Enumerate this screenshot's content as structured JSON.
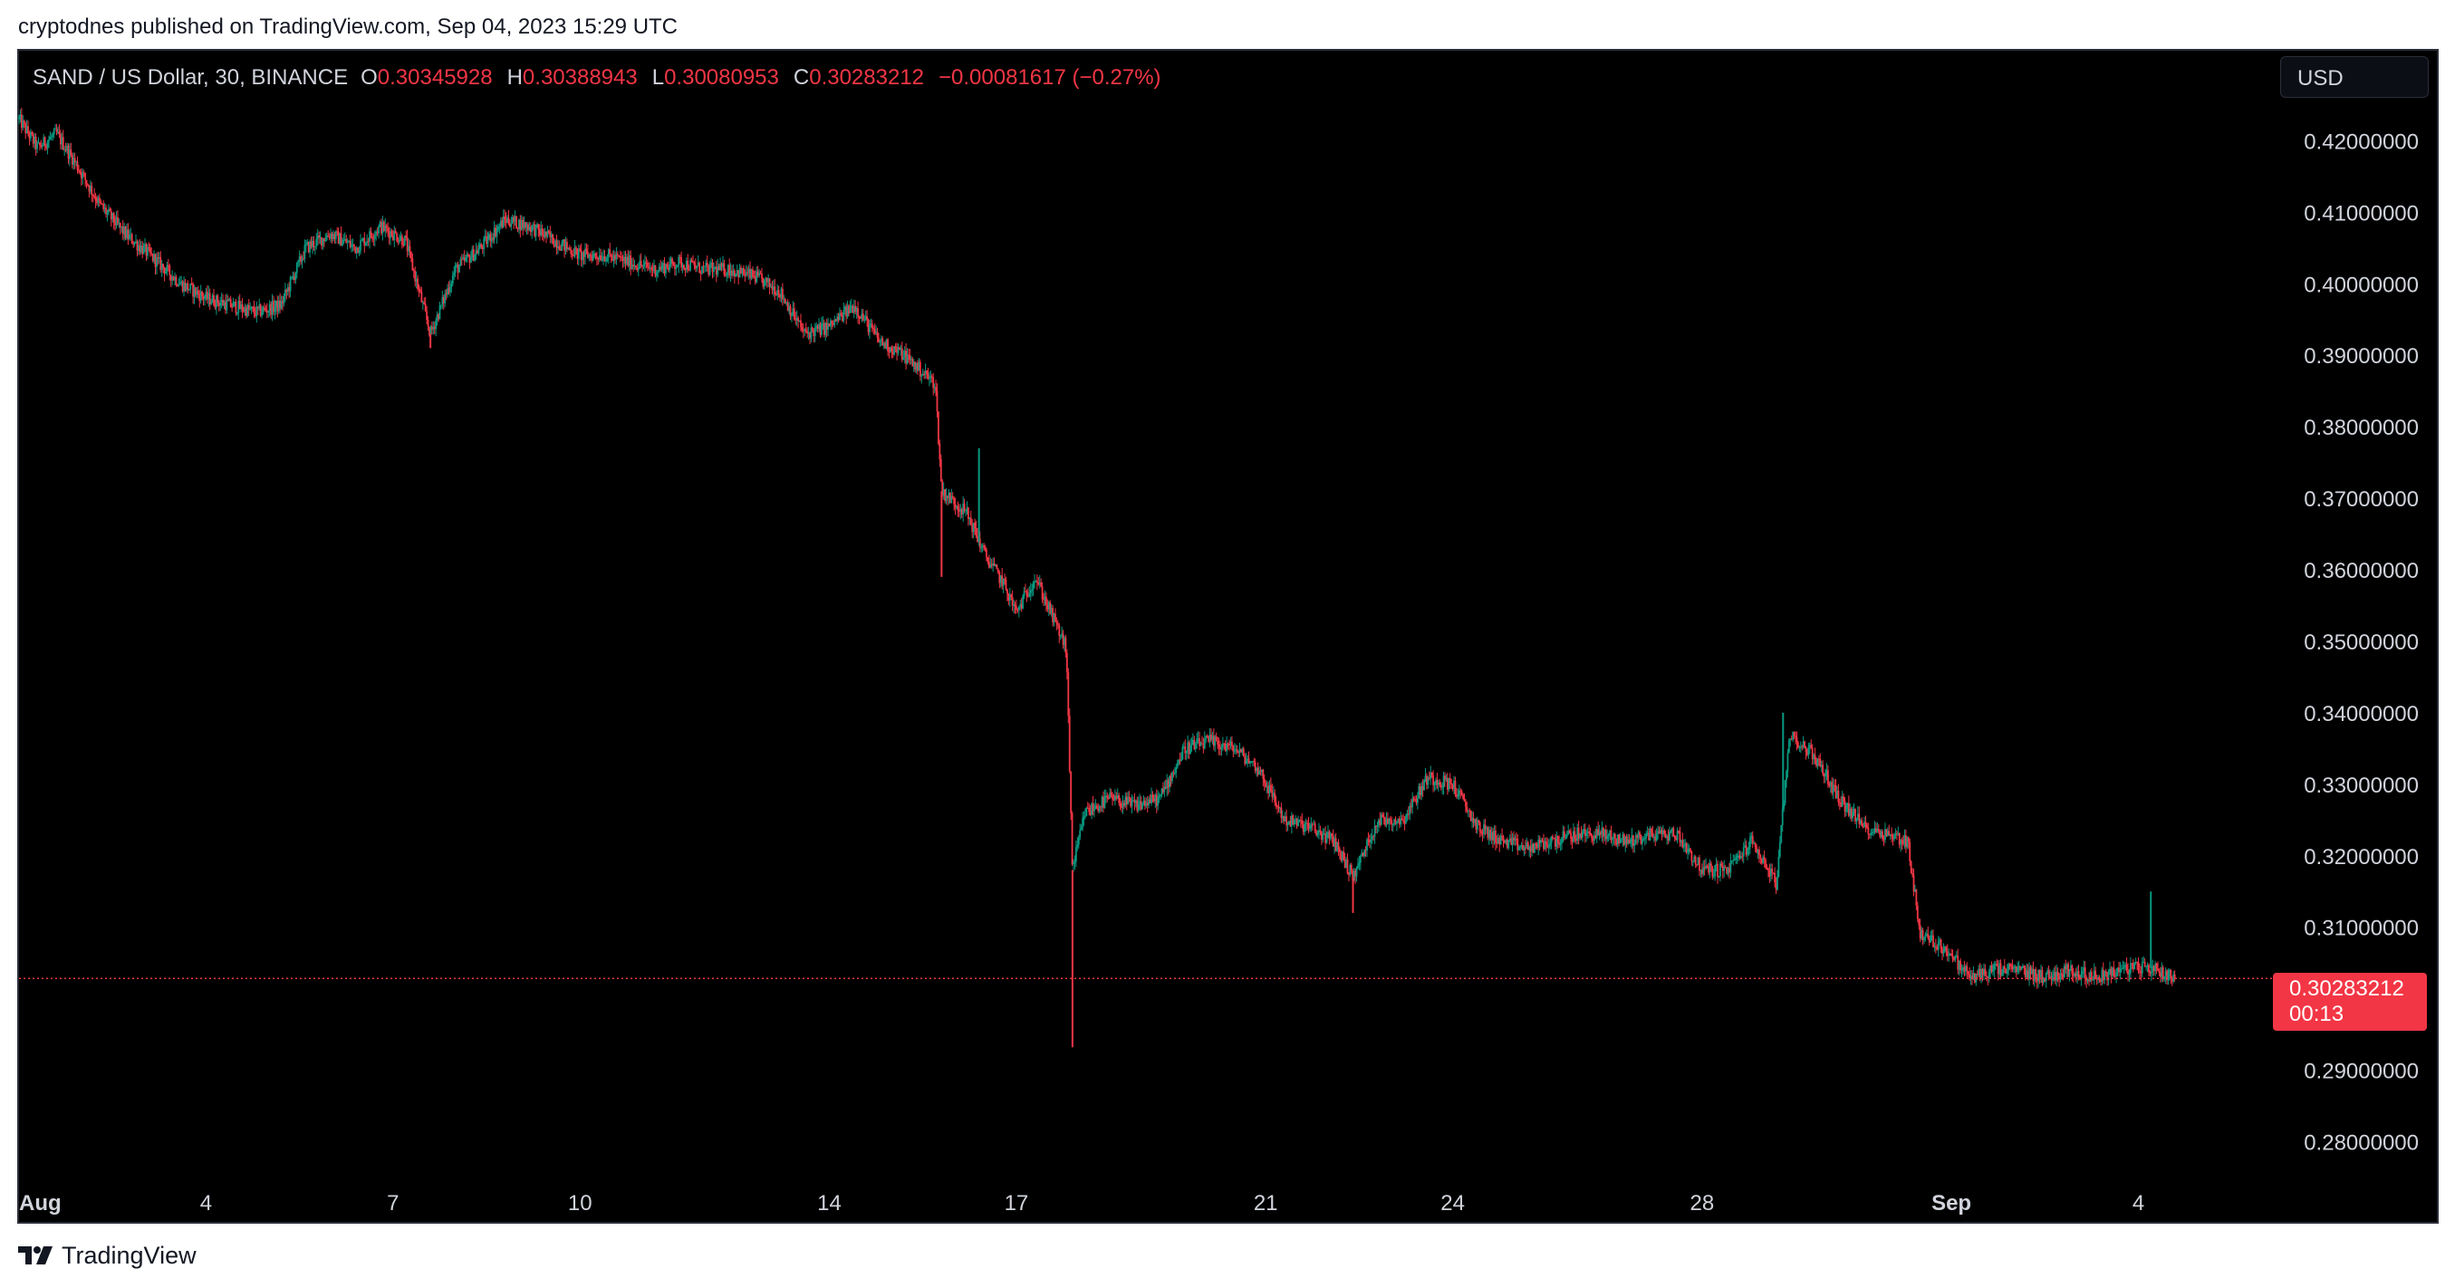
{
  "publish_caption": "cryptodnes published on TradingView.com, Sep 04, 2023 15:29 UTC",
  "legend": {
    "symbol": "SAND / US Dollar, 30, BINANCE",
    "open_label": "O",
    "open": "0.30345928",
    "high_label": "H",
    "high": "0.30388943",
    "low_label": "L",
    "low": "0.30080953",
    "close_label": "C",
    "close": "0.30283212",
    "change": "−0.00081617 (−0.27%)"
  },
  "currency_button": "USD",
  "last_price_badge": {
    "price": "0.30283212",
    "countdown": "00:13"
  },
  "brand": "TradingView",
  "colors": {
    "up": "#089981",
    "down": "#f23645",
    "background": "#000000",
    "text": "#d1d4dc",
    "badge": "#f23645"
  },
  "chart_data": {
    "type": "candlestick",
    "symbol": "SAND / US Dollar",
    "interval": "30",
    "exchange": "BINANCE",
    "ylim": [
      0.2755,
      0.4326
    ],
    "y_ticks": [
      "0.42000000",
      "0.41000000",
      "0.40000000",
      "0.39000000",
      "0.38000000",
      "0.37000000",
      "0.36000000",
      "0.35000000",
      "0.34000000",
      "0.33000000",
      "0.32000000",
      "0.31000000",
      "0.29000000",
      "0.28000000"
    ],
    "x_ticks": [
      {
        "label": "Aug",
        "day": 1
      },
      {
        "label": "4",
        "day": 4
      },
      {
        "label": "7",
        "day": 7
      },
      {
        "label": "10",
        "day": 10
      },
      {
        "label": "14",
        "day": 14
      },
      {
        "label": "17",
        "day": 17
      },
      {
        "label": "21",
        "day": 21
      },
      {
        "label": "24",
        "day": 24
      },
      {
        "label": "28",
        "day": 28
      },
      {
        "label": "Sep",
        "day": 32
      },
      {
        "label": "4",
        "day": 35
      }
    ],
    "x_range_days": [
      1,
      37.1
    ],
    "last_price": 0.30283212,
    "price_path": [
      {
        "day": 1.0,
        "price": 0.423
      },
      {
        "day": 1.3,
        "price": 0.419
      },
      {
        "day": 1.6,
        "price": 0.421
      },
      {
        "day": 1.9,
        "price": 0.417
      },
      {
        "day": 2.3,
        "price": 0.411
      },
      {
        "day": 2.7,
        "price": 0.407
      },
      {
        "day": 3.1,
        "price": 0.404
      },
      {
        "day": 3.6,
        "price": 0.4
      },
      {
        "day": 4.0,
        "price": 0.398
      },
      {
        "day": 4.4,
        "price": 0.397
      },
      {
        "day": 4.8,
        "price": 0.396
      },
      {
        "day": 5.2,
        "price": 0.397
      },
      {
        "day": 5.6,
        "price": 0.405
      },
      {
        "day": 6.0,
        "price": 0.407
      },
      {
        "day": 6.4,
        "price": 0.405
      },
      {
        "day": 6.8,
        "price": 0.408
      },
      {
        "day": 7.2,
        "price": 0.406
      },
      {
        "day": 7.6,
        "price": 0.393
      },
      {
        "day": 8.0,
        "price": 0.402
      },
      {
        "day": 8.4,
        "price": 0.405
      },
      {
        "day": 8.8,
        "price": 0.409
      },
      {
        "day": 9.2,
        "price": 0.408
      },
      {
        "day": 9.6,
        "price": 0.406
      },
      {
        "day": 10.0,
        "price": 0.404
      },
      {
        "day": 10.4,
        "price": 0.404
      },
      {
        "day": 10.8,
        "price": 0.403
      },
      {
        "day": 11.2,
        "price": 0.402
      },
      {
        "day": 11.6,
        "price": 0.403
      },
      {
        "day": 12.0,
        "price": 0.402
      },
      {
        "day": 12.4,
        "price": 0.402
      },
      {
        "day": 12.8,
        "price": 0.401
      },
      {
        "day": 13.2,
        "price": 0.399
      },
      {
        "day": 13.6,
        "price": 0.393
      },
      {
        "day": 14.0,
        "price": 0.394
      },
      {
        "day": 14.4,
        "price": 0.397
      },
      {
        "day": 14.8,
        "price": 0.392
      },
      {
        "day": 15.2,
        "price": 0.39
      },
      {
        "day": 15.7,
        "price": 0.386
      },
      {
        "day": 15.8,
        "price": 0.371
      },
      {
        "day": 16.2,
        "price": 0.368
      },
      {
        "day": 16.5,
        "price": 0.362
      },
      {
        "day": 16.8,
        "price": 0.358
      },
      {
        "day": 17.0,
        "price": 0.354
      },
      {
        "day": 17.3,
        "price": 0.359
      },
      {
        "day": 17.6,
        "price": 0.353
      },
      {
        "day": 17.8,
        "price": 0.349
      },
      {
        "day": 17.9,
        "price": 0.318
      },
      {
        "day": 18.1,
        "price": 0.326
      },
      {
        "day": 18.5,
        "price": 0.328
      },
      {
        "day": 18.9,
        "price": 0.327
      },
      {
        "day": 19.3,
        "price": 0.328
      },
      {
        "day": 19.7,
        "price": 0.335
      },
      {
        "day": 20.1,
        "price": 0.336
      },
      {
        "day": 20.5,
        "price": 0.335
      },
      {
        "day": 20.9,
        "price": 0.332
      },
      {
        "day": 21.3,
        "price": 0.325
      },
      {
        "day": 21.7,
        "price": 0.324
      },
      {
        "day": 22.1,
        "price": 0.322
      },
      {
        "day": 22.4,
        "price": 0.317
      },
      {
        "day": 22.8,
        "price": 0.325
      },
      {
        "day": 23.2,
        "price": 0.325
      },
      {
        "day": 23.6,
        "price": 0.331
      },
      {
        "day": 24.0,
        "price": 0.33
      },
      {
        "day": 24.4,
        "price": 0.324
      },
      {
        "day": 24.8,
        "price": 0.322
      },
      {
        "day": 25.2,
        "price": 0.321
      },
      {
        "day": 25.6,
        "price": 0.322
      },
      {
        "day": 26.0,
        "price": 0.323
      },
      {
        "day": 26.4,
        "price": 0.323
      },
      {
        "day": 26.8,
        "price": 0.322
      },
      {
        "day": 27.2,
        "price": 0.323
      },
      {
        "day": 27.6,
        "price": 0.323
      },
      {
        "day": 28.0,
        "price": 0.318
      },
      {
        "day": 28.4,
        "price": 0.318
      },
      {
        "day": 28.8,
        "price": 0.322
      },
      {
        "day": 29.2,
        "price": 0.316
      },
      {
        "day": 29.4,
        "price": 0.337
      },
      {
        "day": 29.8,
        "price": 0.334
      },
      {
        "day": 30.2,
        "price": 0.328
      },
      {
        "day": 30.6,
        "price": 0.324
      },
      {
        "day": 31.0,
        "price": 0.323
      },
      {
        "day": 31.3,
        "price": 0.322
      },
      {
        "day": 31.5,
        "price": 0.309
      },
      {
        "day": 31.9,
        "price": 0.307
      },
      {
        "day": 32.3,
        "price": 0.303
      },
      {
        "day": 32.7,
        "price": 0.304
      },
      {
        "day": 33.1,
        "price": 0.304
      },
      {
        "day": 33.5,
        "price": 0.303
      },
      {
        "day": 33.9,
        "price": 0.304
      },
      {
        "day": 34.3,
        "price": 0.303
      },
      {
        "day": 34.7,
        "price": 0.304
      },
      {
        "day": 35.1,
        "price": 0.3045
      },
      {
        "day": 35.5,
        "price": 0.3034
      },
      {
        "day": 35.6,
        "price": 0.3028
      }
    ],
    "spikes": [
      {
        "day": 7.6,
        "low": 0.391
      },
      {
        "day": 15.8,
        "low": 0.359
      },
      {
        "day": 16.4,
        "high": 0.377
      },
      {
        "day": 17.9,
        "low": 0.2932
      },
      {
        "day": 22.4,
        "low": 0.312
      },
      {
        "day": 29.3,
        "high": 0.34
      },
      {
        "day": 35.2,
        "high": 0.315
      }
    ]
  }
}
